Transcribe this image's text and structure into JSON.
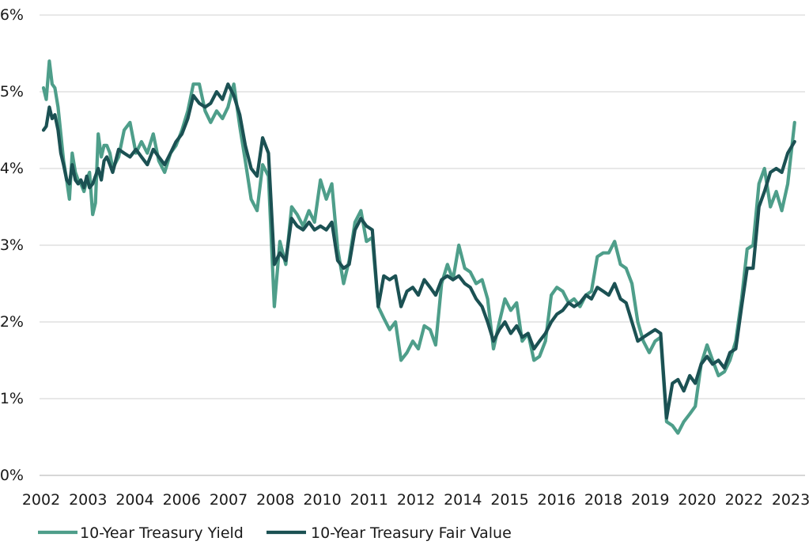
{
  "chart_data": {
    "type": "line",
    "title": "",
    "xlabel": "",
    "ylabel": "",
    "y_tick_labels": [
      "0%",
      "1%",
      "2%",
      "3%",
      "4%",
      "5%",
      "6%"
    ],
    "y_ticks": [
      0,
      1,
      2,
      3,
      4,
      5,
      6
    ],
    "ylim": [
      0,
      6
    ],
    "x_tick_labels": [
      "2002",
      "2003",
      "2004",
      "2006",
      "2007",
      "2008",
      "2010",
      "2011",
      "2012",
      "2014",
      "2015",
      "2016",
      "2018",
      "2019",
      "2020",
      "2022",
      "2023"
    ],
    "xlim": [
      2002.0,
      2023.75
    ],
    "grid": "horizontal",
    "legend_position": "bottom-left",
    "colors": {
      "yield": "#4e9e8a",
      "fair_value": "#1b5153"
    },
    "series": [
      {
        "name": "10-Year Treasury Yield",
        "x": [
          2002.0,
          2002.08,
          2002.17,
          2002.25,
          2002.33,
          2002.42,
          2002.5,
          2002.58,
          2002.67,
          2002.75,
          2002.83,
          2002.92,
          2003.0,
          2003.08,
          2003.17,
          2003.25,
          2003.33,
          2003.42,
          2003.5,
          2003.58,
          2003.67,
          2003.75,
          2003.83,
          2003.92,
          2004.0,
          2004.17,
          2004.33,
          2004.5,
          2004.67,
          2004.83,
          2005.0,
          2005.17,
          2005.33,
          2005.5,
          2005.67,
          2005.83,
          2006.0,
          2006.17,
          2006.33,
          2006.5,
          2006.67,
          2006.83,
          2007.0,
          2007.17,
          2007.33,
          2007.5,
          2007.67,
          2007.83,
          2008.0,
          2008.17,
          2008.33,
          2008.5,
          2008.67,
          2008.83,
          2009.0,
          2009.17,
          2009.33,
          2009.5,
          2009.67,
          2009.83,
          2010.0,
          2010.17,
          2010.33,
          2010.5,
          2010.67,
          2010.83,
          2011.0,
          2011.17,
          2011.33,
          2011.5,
          2011.67,
          2011.83,
          2012.0,
          2012.17,
          2012.33,
          2012.5,
          2012.67,
          2012.83,
          2013.0,
          2013.17,
          2013.33,
          2013.5,
          2013.67,
          2013.83,
          2014.0,
          2014.17,
          2014.33,
          2014.5,
          2014.67,
          2014.83,
          2015.0,
          2015.17,
          2015.33,
          2015.5,
          2015.67,
          2015.83,
          2016.0,
          2016.17,
          2016.33,
          2016.5,
          2016.67,
          2016.83,
          2017.0,
          2017.17,
          2017.33,
          2017.5,
          2017.67,
          2017.83,
          2018.0,
          2018.17,
          2018.33,
          2018.5,
          2018.67,
          2018.83,
          2019.0,
          2019.17,
          2019.33,
          2019.5,
          2019.67,
          2019.83,
          2020.0,
          2020.17,
          2020.33,
          2020.5,
          2020.67,
          2020.83,
          2021.0,
          2021.17,
          2021.33,
          2021.5,
          2021.67,
          2021.83,
          2022.0,
          2022.17,
          2022.33,
          2022.5,
          2022.67,
          2022.83,
          2023.0,
          2023.17,
          2023.33,
          2023.5,
          2023.7
        ],
        "values": [
          5.05,
          4.9,
          5.4,
          5.1,
          5.05,
          4.8,
          4.45,
          4.1,
          3.85,
          3.6,
          4.2,
          3.95,
          3.85,
          3.8,
          3.7,
          3.85,
          3.95,
          3.4,
          3.55,
          4.45,
          4.15,
          4.3,
          4.3,
          4.2,
          4.0,
          4.15,
          4.5,
          4.6,
          4.2,
          4.35,
          4.2,
          4.45,
          4.1,
          3.95,
          4.2,
          4.3,
          4.5,
          4.75,
          5.1,
          5.1,
          4.75,
          4.6,
          4.75,
          4.65,
          4.8,
          5.1,
          4.55,
          4.1,
          3.6,
          3.45,
          4.05,
          3.9,
          2.2,
          3.05,
          2.75,
          3.5,
          3.4,
          3.25,
          3.45,
          3.3,
          3.85,
          3.6,
          3.8,
          2.95,
          2.5,
          2.8,
          3.3,
          3.45,
          3.05,
          3.1,
          2.2,
          2.05,
          1.9,
          2.0,
          1.5,
          1.6,
          1.75,
          1.65,
          1.95,
          1.9,
          1.7,
          2.5,
          2.75,
          2.55,
          3.0,
          2.7,
          2.65,
          2.5,
          2.55,
          2.3,
          1.65,
          2.0,
          2.3,
          2.15,
          2.25,
          1.75,
          1.85,
          1.5,
          1.55,
          1.75,
          2.35,
          2.45,
          2.4,
          2.25,
          2.3,
          2.2,
          2.35,
          2.4,
          2.85,
          2.9,
          2.9,
          3.05,
          2.75,
          2.7,
          2.5,
          2.0,
          1.75,
          1.6,
          1.75,
          1.8,
          0.7,
          0.65,
          0.55,
          0.7,
          0.8,
          0.9,
          1.45,
          1.7,
          1.5,
          1.3,
          1.35,
          1.5,
          1.75,
          2.3,
          2.95,
          3.0,
          3.8,
          4.0,
          3.5,
          3.7,
          3.45,
          3.8,
          4.6
        ]
      },
      {
        "name": "10-Year Treasury Fair Value",
        "x": [
          2002.0,
          2002.08,
          2002.17,
          2002.25,
          2002.33,
          2002.42,
          2002.5,
          2002.58,
          2002.67,
          2002.75,
          2002.83,
          2002.92,
          2003.0,
          2003.08,
          2003.17,
          2003.25,
          2003.33,
          2003.42,
          2003.5,
          2003.58,
          2003.67,
          2003.75,
          2003.83,
          2003.92,
          2004.0,
          2004.17,
          2004.33,
          2004.5,
          2004.67,
          2004.83,
          2005.0,
          2005.17,
          2005.33,
          2005.5,
          2005.67,
          2005.83,
          2006.0,
          2006.17,
          2006.33,
          2006.5,
          2006.67,
          2006.83,
          2007.0,
          2007.17,
          2007.33,
          2007.5,
          2007.67,
          2007.83,
          2008.0,
          2008.17,
          2008.33,
          2008.5,
          2008.67,
          2008.83,
          2009.0,
          2009.17,
          2009.33,
          2009.5,
          2009.67,
          2009.83,
          2010.0,
          2010.17,
          2010.33,
          2010.5,
          2010.67,
          2010.83,
          2011.0,
          2011.17,
          2011.33,
          2011.5,
          2011.67,
          2011.83,
          2012.0,
          2012.17,
          2012.33,
          2012.5,
          2012.67,
          2012.83,
          2013.0,
          2013.17,
          2013.33,
          2013.5,
          2013.67,
          2013.83,
          2014.0,
          2014.17,
          2014.33,
          2014.5,
          2014.67,
          2014.83,
          2015.0,
          2015.17,
          2015.33,
          2015.5,
          2015.67,
          2015.83,
          2016.0,
          2016.17,
          2016.33,
          2016.5,
          2016.67,
          2016.83,
          2017.0,
          2017.17,
          2017.33,
          2017.5,
          2017.67,
          2017.83,
          2018.0,
          2018.17,
          2018.33,
          2018.5,
          2018.67,
          2018.83,
          2019.0,
          2019.17,
          2019.33,
          2019.5,
          2019.67,
          2019.83,
          2020.0,
          2020.17,
          2020.33,
          2020.5,
          2020.67,
          2020.83,
          2021.0,
          2021.17,
          2021.33,
          2021.5,
          2021.67,
          2021.83,
          2022.0,
          2022.17,
          2022.33,
          2022.5,
          2022.67,
          2022.83,
          2023.0,
          2023.17,
          2023.33,
          2023.5,
          2023.7
        ],
        "values": [
          4.5,
          4.55,
          4.8,
          4.65,
          4.7,
          4.5,
          4.2,
          4.05,
          3.85,
          3.8,
          4.05,
          3.85,
          3.8,
          3.85,
          3.75,
          3.9,
          3.75,
          3.8,
          3.9,
          4.0,
          3.85,
          4.1,
          4.15,
          4.05,
          3.95,
          4.25,
          4.2,
          4.15,
          4.25,
          4.15,
          4.05,
          4.25,
          4.15,
          4.05,
          4.2,
          4.35,
          4.45,
          4.65,
          4.95,
          4.85,
          4.8,
          4.85,
          5.0,
          4.9,
          5.1,
          4.95,
          4.7,
          4.3,
          4.0,
          3.9,
          4.4,
          4.2,
          2.75,
          2.9,
          2.8,
          3.35,
          3.25,
          3.2,
          3.3,
          3.2,
          3.25,
          3.2,
          3.3,
          2.8,
          2.7,
          2.75,
          3.2,
          3.35,
          3.25,
          3.2,
          2.2,
          2.6,
          2.55,
          2.6,
          2.2,
          2.4,
          2.45,
          2.35,
          2.55,
          2.45,
          2.35,
          2.55,
          2.6,
          2.55,
          2.6,
          2.5,
          2.45,
          2.3,
          2.2,
          2.0,
          1.75,
          1.9,
          2.0,
          1.85,
          1.95,
          1.8,
          1.85,
          1.65,
          1.75,
          1.85,
          2.0,
          2.1,
          2.15,
          2.25,
          2.2,
          2.25,
          2.35,
          2.3,
          2.45,
          2.4,
          2.35,
          2.5,
          2.3,
          2.25,
          2.0,
          1.75,
          1.8,
          1.85,
          1.9,
          1.85,
          0.75,
          1.2,
          1.25,
          1.1,
          1.3,
          1.2,
          1.45,
          1.55,
          1.45,
          1.5,
          1.4,
          1.6,
          1.65,
          2.2,
          2.7,
          2.7,
          3.5,
          3.7,
          3.95,
          4.0,
          3.95,
          4.2,
          4.35
        ]
      }
    ]
  }
}
